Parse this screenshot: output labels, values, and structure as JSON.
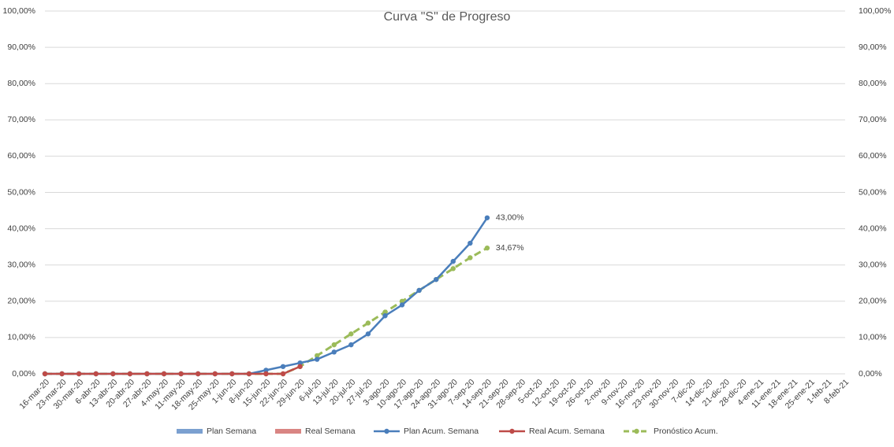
{
  "chart_data": {
    "type": "line",
    "title": "Curva  \"S\" de Progreso",
    "categories": [
      "16-mar-20",
      "23-mar-20",
      "30-mar-20",
      "6-abr-20",
      "13-abr-20",
      "20-abr-20",
      "27-abr-20",
      "4-may-20",
      "11-may-20",
      "18-may-20",
      "25-may-20",
      "1-jun-20",
      "8-jun-20",
      "15-jun-20",
      "22-jun-20",
      "29-jun-20",
      "6-jul-20",
      "13-jul-20",
      "20-jul-20",
      "27-jul-20",
      "3-ago-20",
      "10-ago-20",
      "17-ago-20",
      "24-ago-20",
      "31-ago-20",
      "7-sep-20",
      "14-sep-20",
      "21-sep-20",
      "28-sep-20",
      "5-oct-20",
      "12-oct-20",
      "19-oct-20",
      "26-oct-20",
      "2-nov-20",
      "9-nov-20",
      "16-nov-20",
      "23-nov-20",
      "30-nov-20",
      "7-dic-20",
      "14-dic-20",
      "21-dic-20",
      "28-dic-20",
      "4-ene-21",
      "11-ene-21",
      "18-ene-21",
      "25-ene-21",
      "1-feb-21",
      "8-feb-21"
    ],
    "series": [
      {
        "name": "Plan Semana",
        "type": "bar",
        "color": "#7ba0d0",
        "axis": "y2",
        "values": [
          null,
          null,
          null,
          null,
          null,
          null,
          null,
          null,
          null,
          null,
          null,
          null,
          null,
          null,
          null,
          null,
          null,
          null,
          null,
          null,
          null,
          null,
          null,
          null,
          null,
          null,
          null,
          null,
          null,
          null,
          null,
          null,
          null,
          null,
          null,
          null,
          null,
          null,
          null,
          null,
          null,
          null,
          null,
          null,
          null,
          null,
          null,
          null
        ]
      },
      {
        "name": "Real Semana",
        "type": "bar",
        "color": "#d98583",
        "axis": "y2",
        "values": [
          null,
          null,
          null,
          null,
          null,
          null,
          null,
          null,
          null,
          null,
          null,
          null,
          null,
          null,
          null,
          null,
          null,
          null,
          null,
          null,
          null,
          null,
          null,
          null,
          null,
          null,
          null,
          null,
          null,
          null,
          null,
          null,
          null,
          null,
          null,
          null,
          null,
          null,
          null,
          null,
          null,
          null,
          null,
          null,
          null,
          null,
          null,
          null
        ]
      },
      {
        "name": "Plan Acum. Semana",
        "type": "line",
        "color": "#4a7ebb",
        "values": [
          0,
          0,
          0,
          0,
          0,
          0,
          0,
          0,
          0,
          0,
          0,
          0,
          0,
          1,
          2,
          3,
          4,
          6,
          8,
          11,
          16,
          19,
          23,
          26,
          31,
          36,
          43,
          null,
          null,
          null,
          null,
          null,
          null,
          null,
          null,
          null,
          null,
          null,
          null,
          null,
          null,
          null,
          null,
          null,
          null,
          null,
          null,
          null
        ],
        "value_labels": [
          null,
          null,
          null,
          null,
          null,
          null,
          null,
          null,
          null,
          null,
          null,
          null,
          null,
          null,
          null,
          null,
          null,
          null,
          null,
          null,
          null,
          null,
          null,
          null,
          null,
          null,
          "43,00%",
          null,
          null,
          null,
          null,
          null,
          null,
          null,
          null,
          null,
          null,
          null,
          null,
          null,
          null,
          null,
          null,
          null,
          null,
          null,
          null,
          null
        ]
      },
      {
        "name": "Real Acum. Semana",
        "type": "line",
        "color": "#be4b48",
        "values": [
          0,
          0,
          0,
          0,
          0,
          0,
          0,
          0,
          0,
          0,
          0,
          0,
          0,
          0,
          0,
          2,
          null,
          null,
          null,
          null,
          null,
          null,
          null,
          null,
          null,
          null,
          null,
          null,
          null,
          null,
          null,
          null,
          null,
          null,
          null,
          null,
          null,
          null,
          null,
          null,
          null,
          null,
          null,
          null,
          null,
          null,
          null,
          null
        ]
      },
      {
        "name": "Pronóstico Acum.",
        "type": "line",
        "dashed": true,
        "color": "#9bbb59",
        "values": [
          0,
          0,
          0,
          0,
          0,
          0,
          0,
          0,
          0,
          0,
          0,
          0,
          0,
          0,
          0,
          2,
          5,
          8,
          11,
          14,
          17,
          20,
          23,
          26,
          29,
          32,
          34.67,
          null,
          null,
          null,
          null,
          null,
          null,
          null,
          null,
          null,
          null,
          null,
          null,
          null,
          null,
          null,
          null,
          null,
          null,
          null,
          null,
          null
        ],
        "value_labels": [
          null,
          null,
          null,
          null,
          null,
          null,
          null,
          null,
          null,
          null,
          null,
          null,
          null,
          null,
          null,
          null,
          null,
          null,
          null,
          null,
          null,
          null,
          null,
          null,
          null,
          null,
          "34,67%",
          null,
          null,
          null,
          null,
          null,
          null,
          null,
          null,
          null,
          null,
          null,
          null,
          null,
          null,
          null,
          null,
          null,
          null,
          null,
          null,
          null
        ]
      }
    ],
    "ylim": [
      0,
      100
    ],
    "yticks": [
      {
        "value": 0,
        "label": "0,00%"
      },
      {
        "value": 10,
        "label": "10,00%"
      },
      {
        "value": 20,
        "label": "20,00%"
      },
      {
        "value": 30,
        "label": "30,00%"
      },
      {
        "value": 40,
        "label": "40,00%"
      },
      {
        "value": 50,
        "label": "50,00%"
      },
      {
        "value": 60,
        "label": "60,00%"
      },
      {
        "value": 70,
        "label": "70,00%"
      },
      {
        "value": 80,
        "label": "80,00%"
      },
      {
        "value": 90,
        "label": "90,00%"
      },
      {
        "value": 100,
        "label": "100,00%"
      }
    ],
    "y2lim": [
      0,
      100
    ],
    "y2ticks": [
      {
        "value": 0,
        "label": "0,00%"
      },
      {
        "value": 10,
        "label": "10,00%"
      },
      {
        "value": 20,
        "label": "20,00%"
      },
      {
        "value": 30,
        "label": "30,00%"
      },
      {
        "value": 40,
        "label": "40,00%"
      },
      {
        "value": 50,
        "label": "50,00%"
      },
      {
        "value": 60,
        "label": "60,00%"
      },
      {
        "value": 70,
        "label": "70,00%"
      },
      {
        "value": 80,
        "label": "80,00%"
      },
      {
        "value": 90,
        "label": "90,00%"
      },
      {
        "value": 100,
        "label": "100,00%"
      }
    ],
    "grid": true,
    "legend": "bottom"
  }
}
